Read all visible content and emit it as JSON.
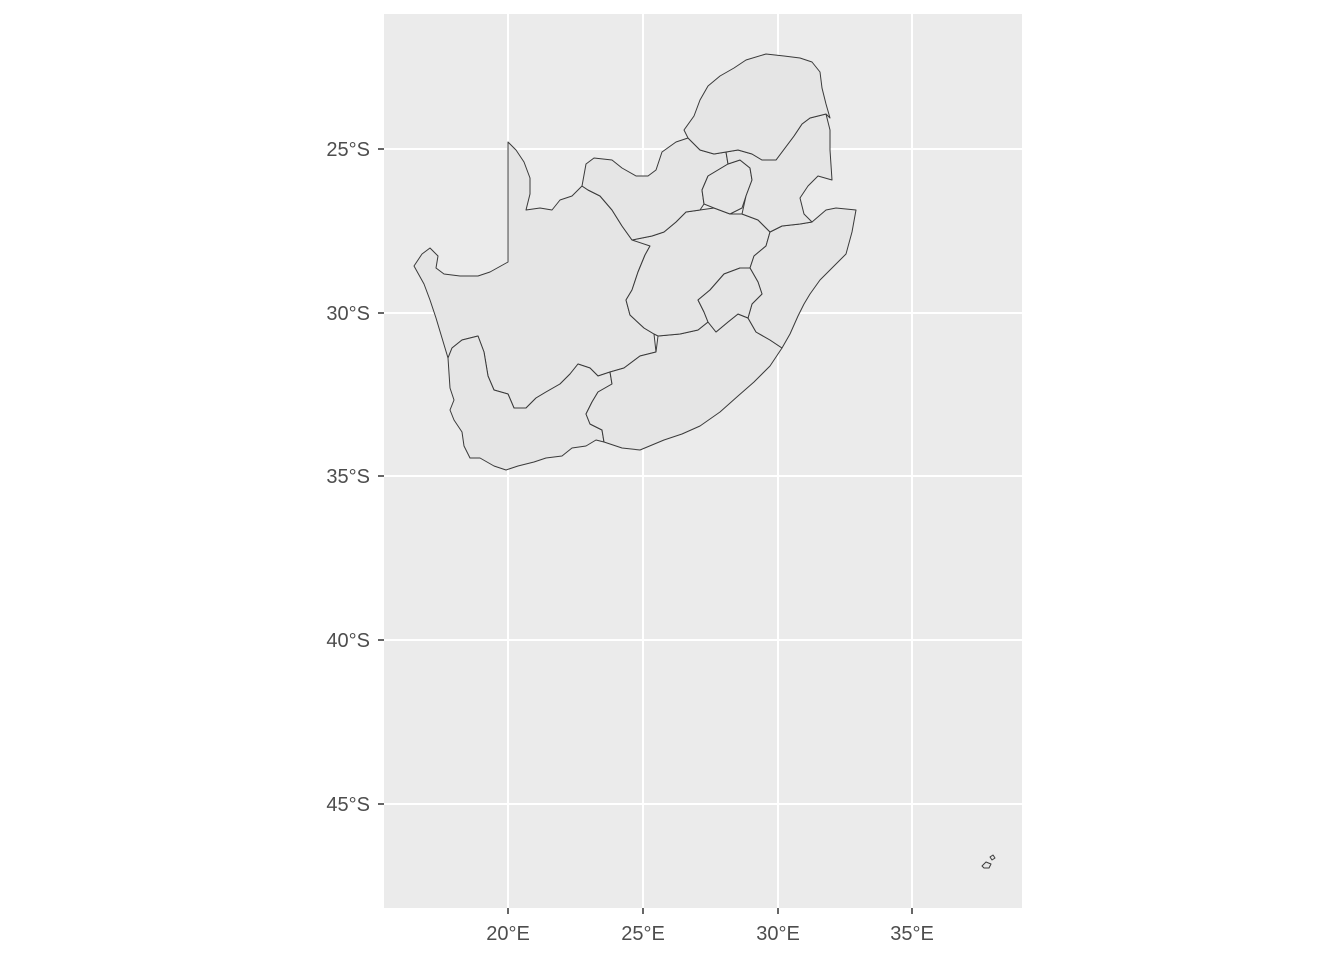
{
  "map": {
    "panel_background": "#ebebeb",
    "land_fill": "#e5e5e5",
    "border_color": "#3a3a3a",
    "grid_color": "#ffffff",
    "lat_ticks": [
      {
        "value": -25,
        "label": "25°S"
      },
      {
        "value": -30,
        "label": "30°S"
      },
      {
        "value": -35,
        "label": "35°S"
      },
      {
        "value": -40,
        "label": "40°S"
      },
      {
        "value": -45,
        "label": "45°S"
      }
    ],
    "lon_ticks": [
      {
        "value": 20,
        "label": "20°E"
      },
      {
        "value": 25,
        "label": "25°E"
      },
      {
        "value": 30,
        "label": "30°E"
      },
      {
        "value": 35,
        "label": "35°E"
      }
    ],
    "regions": [
      "northern-cape",
      "western-cape",
      "eastern-cape",
      "free-state",
      "kwazulu-natal",
      "north-west",
      "gauteng",
      "mpumalanga",
      "limpopo",
      "lesotho",
      "marion-island",
      "prince-edward-island"
    ]
  }
}
